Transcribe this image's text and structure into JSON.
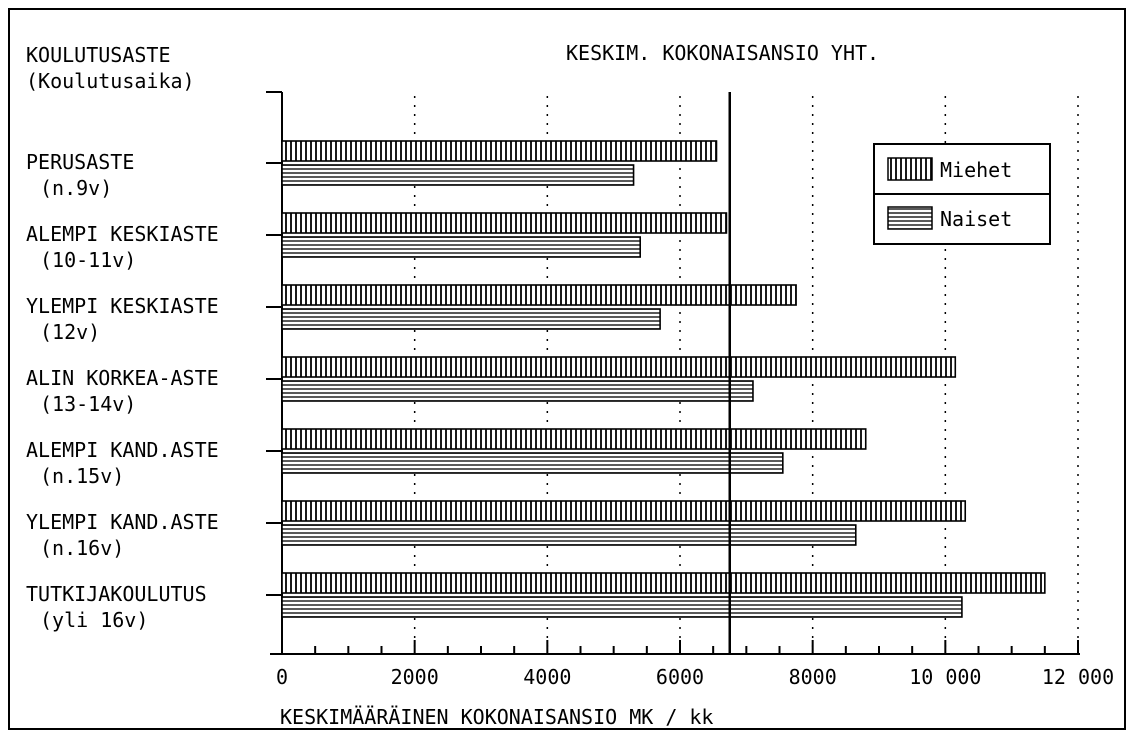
{
  "chart_data": {
    "type": "bar",
    "title": "KESKIM. KOKONAISANSIO YHT.",
    "category_axis_title": [
      "KOULUTUSASTE",
      "(Koulutusaika)"
    ],
    "xlabel": "KESKIMÄÄRÄINEN KOKONAISANSIO MK / kk",
    "xlim": [
      0,
      12000
    ],
    "x_ticks": [
      0,
      2000,
      4000,
      6000,
      8000,
      10000,
      12000
    ],
    "x_tick_labels": [
      "0",
      "2000",
      "4000",
      "6000",
      "8000",
      "10 000",
      "12 000"
    ],
    "reference_line": 6750,
    "categories": [
      {
        "name": "PERUSASTE",
        "sub": "(n.9v)"
      },
      {
        "name": "ALEMPI KESKIASTE",
        "sub": "(10-11v)"
      },
      {
        "name": "YLEMPI KESKIASTE",
        "sub": "(12v)"
      },
      {
        "name": "ALIN KORKEA-ASTE",
        "sub": "(13-14v)"
      },
      {
        "name": "ALEMPI KAND.ASTE",
        "sub": "(n.15v)"
      },
      {
        "name": "YLEMPI KAND.ASTE",
        "sub": "(n.16v)"
      },
      {
        "name": "TUTKIJAKOULUTUS",
        "sub": "(yli 16v)"
      }
    ],
    "series": [
      {
        "name": "Miehet",
        "pattern": "vertical-hatch",
        "values": [
          6550,
          6700,
          7750,
          10150,
          8800,
          10300,
          11500
        ]
      },
      {
        "name": "Naiset",
        "pattern": "horizontal-hatch",
        "values": [
          5300,
          5400,
          5700,
          7100,
          7550,
          8650,
          10250
        ]
      }
    ],
    "legend_position": "top-right",
    "grid": "dotted vertical"
  }
}
